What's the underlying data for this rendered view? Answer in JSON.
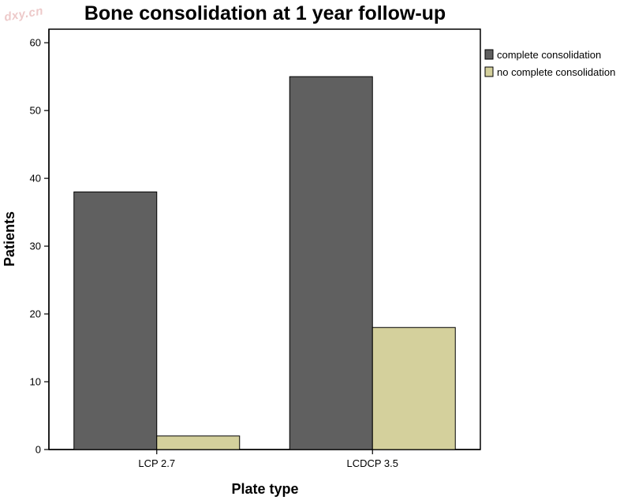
{
  "watermark": "dxy.cn",
  "chart_data": {
    "type": "bar",
    "title": "Bone consolidation at 1 year follow-up",
    "xlabel": "Plate type",
    "ylabel": "Patients",
    "categories": [
      "LCP 2.7",
      "LCDCP 3.5"
    ],
    "series": [
      {
        "name": "complete consolidation",
        "values": [
          38,
          55
        ],
        "color": "#606060"
      },
      {
        "name": "no complete consolidation",
        "values": [
          2,
          18
        ],
        "color": "#d4d09c"
      }
    ],
    "ylim": [
      0,
      62
    ],
    "yticks": [
      0,
      10,
      20,
      30,
      40,
      50,
      60
    ],
    "grid": false,
    "legend_position": "right"
  }
}
